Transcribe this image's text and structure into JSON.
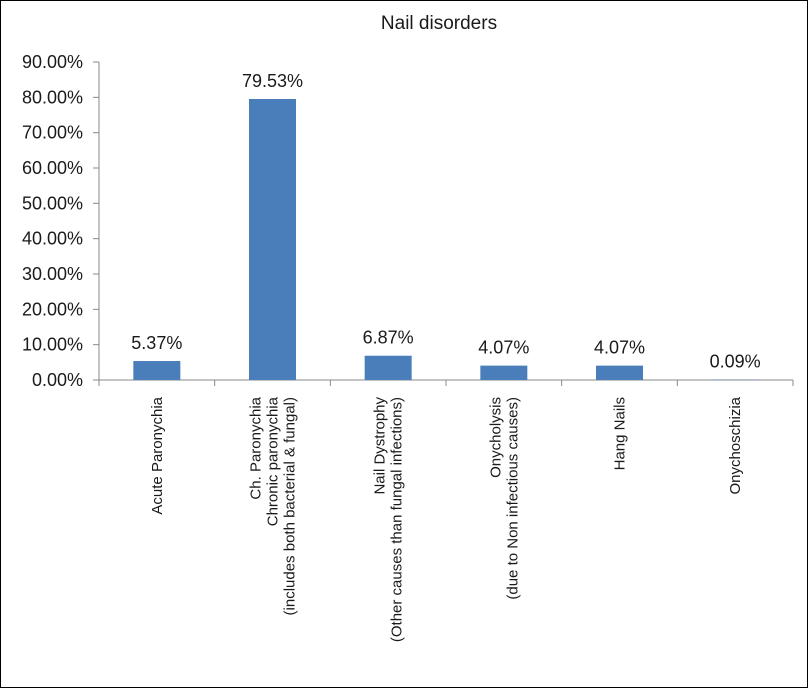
{
  "chart_data": {
    "type": "bar",
    "title": "Nail disorders",
    "xlabel": "",
    "ylabel": "",
    "ylim": [
      0,
      90
    ],
    "y_ticks": [
      0,
      10,
      20,
      30,
      40,
      50,
      60,
      70,
      80,
      90
    ],
    "y_tick_labels": [
      "0.00%",
      "10.00%",
      "20.00%",
      "30.00%",
      "40.00%",
      "50.00%",
      "60.00%",
      "70.00%",
      "80.00%",
      "90.00%"
    ],
    "categories": [
      [
        "Acute Paronychia"
      ],
      [
        "Ch. Paronychia",
        "Chronic paronychia",
        "(includes both bacterial & fungal)"
      ],
      [
        "Nail Dystrophy",
        "(Other causes than fungal infections)"
      ],
      [
        "Onycholysis",
        "(due to Non infectious causes)"
      ],
      [
        "Hang Nails"
      ],
      [
        "Onychoschizia"
      ]
    ],
    "values": [
      5.37,
      79.53,
      6.87,
      4.07,
      4.07,
      0.09
    ],
    "data_labels": [
      "5.37%",
      "79.53%",
      "6.87%",
      "4.07%",
      "4.07%",
      "0.09%"
    ],
    "bar_color": "#4a7ebb",
    "axis_color": "#888888",
    "grid": false,
    "legend": "none"
  }
}
